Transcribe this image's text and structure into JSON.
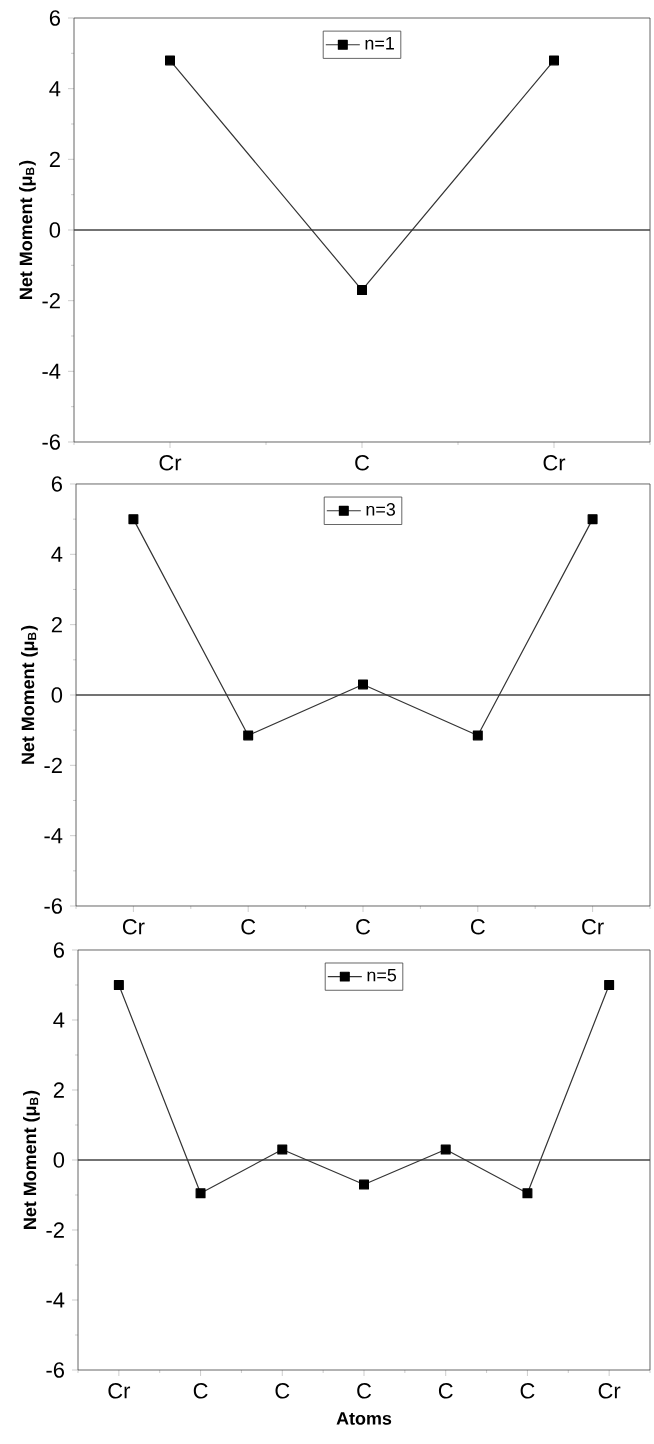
{
  "chart_data": [
    {
      "type": "line",
      "categories": [
        "Cr",
        "C",
        "Cr"
      ],
      "ylabel": "Net Moment (μ$_{B}$)",
      "ylim": [
        -6,
        6
      ],
      "yticks": [
        -6,
        -4,
        -2,
        0,
        2,
        4,
        6
      ],
      "legend": "top",
      "marker": "square",
      "line_style": "solid",
      "ref_lines": [
        {
          "axis": "y",
          "value": 0,
          "color": "#444444"
        }
      ],
      "series": [
        {
          "name": "n=1",
          "color": "#333333",
          "values": [
            4.8,
            -1.7,
            4.8
          ]
        }
      ]
    },
    {
      "type": "line",
      "categories": [
        "Cr",
        "C",
        "C",
        "C",
        "Cr"
      ],
      "ylabel": "Net Moment (μ$_{B}$)",
      "ylim": [
        -6,
        6
      ],
      "yticks": [
        -6,
        -4,
        -2,
        0,
        2,
        4,
        6
      ],
      "legend": "top",
      "marker": "square",
      "line_style": "solid",
      "ref_lines": [
        {
          "axis": "y",
          "value": 0,
          "color": "#444444"
        }
      ],
      "series": [
        {
          "name": "n=3",
          "color": "#333333",
          "values": [
            5.0,
            -1.15,
            0.3,
            -1.15,
            5.0
          ]
        }
      ]
    },
    {
      "type": "line",
      "categories": [
        "Cr",
        "C",
        "C",
        "C",
        "C",
        "C",
        "Cr"
      ],
      "xlabel": "Atoms",
      "ylabel": "Net Moment (μ$_{B}$)",
      "ylim": [
        -6,
        6
      ],
      "yticks": [
        -6,
        -4,
        -2,
        0,
        2,
        4,
        6
      ],
      "legend": "top",
      "marker": "square",
      "line_style": "solid",
      "ref_lines": [
        {
          "axis": "y",
          "value": 0,
          "color": "#444444"
        }
      ],
      "series": [
        {
          "name": "n=5",
          "color": "#333333",
          "values": [
            5.0,
            -0.95,
            0.3,
            -0.7,
            0.3,
            -0.95,
            5.0
          ]
        }
      ]
    }
  ]
}
